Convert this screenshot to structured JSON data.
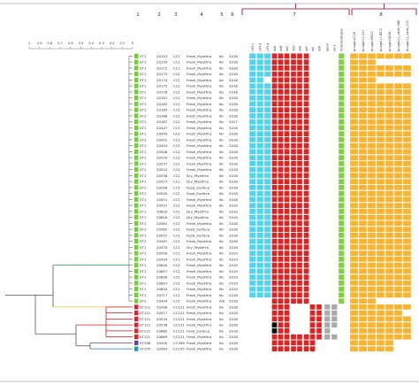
{
  "column_numbers": [
    "1",
    "2",
    "3",
    "4",
    "5",
    "6",
    "7",
    "8"
  ],
  "scale_ticks": [
    "1",
    "0.9",
    "0.8",
    "0.7",
    "0.6",
    "0.5",
    "0.4",
    "0.3",
    "0.2",
    "0.1",
    "0"
  ],
  "gene_headers": {
    "blue": [
      "LIPI-1",
      "LIPI-3",
      "LIPI-4"
    ],
    "red": [
      "inlA",
      "inlB",
      "inlC",
      "inlD",
      "inlE",
      "inlF",
      "inlJ",
      "inlK"
    ],
    "gray": [
      "qacH",
      "ssi-1"
    ],
    "green": [
      "fosX/resistance"
    ],
    "orange": [
      "pLisgel-A118",
      "pLisgel-J1-121",
      "pLisgel-M520",
      "pLisgel-J1-BD-2",
      "pLisgel-N236",
      "pLisgel-J1_Lmat_SB8",
      "pLisgel-J1_Lmat_200"
    ]
  },
  "colors": {
    "bracket": "#c0305a",
    "st_green": "#6fd02f",
    "st_red": "#e0202a",
    "st_purple": "#6a3fa0",
    "st_teal": "#18a0b0",
    "blue": "#50d4f0",
    "red": "#e61f1f",
    "orange": "#f7b42c",
    "gray": "#aaaaaa",
    "black": "#111111",
    "green_col": "#7ed23a",
    "tree_red": "#d8141c",
    "tree_blue": "#2080c8",
    "tree_purple": "#7040a8",
    "tree_yellow": "#e8c030",
    "tree_green": "#2aa040"
  },
  "isolates": [
    {
      "st": "ST1",
      "id": "20153",
      "cc": "CC1",
      "source": "Fresh_Mystfrra",
      "lab": "IIb",
      "year": "2016",
      "group": "green"
    },
    {
      "st": "ST1",
      "id": "20159",
      "cc": "CC1",
      "source": "Fresh_Mystfrra",
      "lab": "IIb",
      "year": "2016",
      "group": "green"
    },
    {
      "st": "ST1",
      "id": "20172",
      "cc": "CC1",
      "source": "Fresh_Mystfrra",
      "lab": "IIb",
      "year": "2016",
      "group": "green"
    },
    {
      "st": "ST1",
      "id": "20173",
      "cc": "CC1",
      "source": "Fresh_Mystfrra",
      "lab": "IIb",
      "year": "2016",
      "group": "green"
    },
    {
      "st": "ST1",
      "id": "20174",
      "cc": "CC1",
      "source": "Fresh_Mystfrra",
      "lab": "IIa",
      "year": "2016",
      "group": "green"
    },
    {
      "st": "ST1",
      "id": "20175",
      "cc": "CC1",
      "source": "Fresh_Mystfrra",
      "lab": "IIb",
      "year": "2016",
      "group": "green"
    },
    {
      "st": "ST1",
      "id": "20178",
      "cc": "CC1",
      "source": "Fresh_Mystfrra",
      "lab": "IIb",
      "year": "2016",
      "group": "green"
    },
    {
      "st": "ST1",
      "id": "20181",
      "cc": "CC1",
      "source": "Fresh_Mystfrra",
      "lab": "IIb",
      "year": "2018",
      "group": "green"
    },
    {
      "st": "ST1",
      "id": "20182",
      "cc": "CC1",
      "source": "Fresh_Mystfrra",
      "lab": "IIb",
      "year": "2018",
      "group": "green"
    },
    {
      "st": "ST1",
      "id": "20183",
      "cc": "CC1",
      "source": "Fresh_Mystfrra",
      "lab": "IIb",
      "year": "2016",
      "group": "green"
    },
    {
      "st": "ST1",
      "id": "20186",
      "cc": "CC1",
      "source": "Fresh_Mystfrra",
      "lab": "IIb",
      "year": "2018",
      "group": "green"
    },
    {
      "st": "ST1",
      "id": "20187",
      "cc": "CC1",
      "source": "Fresh_Mystfrra",
      "lab": "IIb",
      "year": "2017",
      "group": "green"
    },
    {
      "st": "ST1",
      "id": "20447",
      "cc": "CC1",
      "source": "Fresh_Mystfrra",
      "lab": "IIb",
      "year": "2018",
      "group": "green"
    },
    {
      "st": "ST1",
      "id": "20450",
      "cc": "CC1",
      "source": "Fresh_Mystfrra",
      "lab": "IIb",
      "year": "2018",
      "group": "green"
    },
    {
      "st": "ST1",
      "id": "20452",
      "cc": "CC1",
      "source": "Fresh_Mystfrra",
      "lab": "IIb",
      "year": "2018",
      "group": "green"
    },
    {
      "st": "ST1",
      "id": "20454",
      "cc": "CC1",
      "source": "Fresh_Mystfrra",
      "lab": "IIb",
      "year": "2018",
      "group": "green"
    },
    {
      "st": "ST1",
      "id": "20506",
      "cc": "CC1",
      "source": "Fresh_Mystfrra",
      "lab": "IIb",
      "year": "2018",
      "group": "green"
    },
    {
      "st": "ST1",
      "id": "20525",
      "cc": "CC1",
      "source": "Fresh_Mystfrra",
      "lab": "IIb",
      "year": "2018",
      "group": "green"
    },
    {
      "st": "ST1",
      "id": "20537",
      "cc": "CC1",
      "source": "Fresh_Mystfrra",
      "lab": "IIb",
      "year": "2018",
      "group": "green"
    },
    {
      "st": "ST1",
      "id": "20522",
      "cc": "CC1",
      "source": "Fresh_Mystfrra",
      "lab": "IIb",
      "year": "2018",
      "group": "green"
    },
    {
      "st": "ST1",
      "id": "20536",
      "cc": "CC1",
      "source": "Dry_Mystfrra",
      "lab": "IIb",
      "year": "2018",
      "group": "green"
    },
    {
      "st": "ST1",
      "id": "20527",
      "cc": "CC1",
      "source": "Dry_Mystfrra",
      "lab": "IIb",
      "year": "2018",
      "group": "green"
    },
    {
      "st": "ST1",
      "id": "20548",
      "cc": "CC1",
      "source": "Food_Surface",
      "lab": "IIb",
      "year": "2018",
      "group": "green"
    },
    {
      "st": "ST1",
      "id": "20550",
      "cc": "CC1",
      "source": "Food_Surface",
      "lab": "IIb",
      "year": "2018",
      "group": "green"
    },
    {
      "st": "ST1",
      "id": "20551",
      "cc": "CC1",
      "source": "Fresh_Mystfrra",
      "lab": "IIb",
      "year": "2018",
      "group": "green"
    },
    {
      "st": "ST1",
      "id": "20591",
      "cc": "CC1",
      "source": "Fresh_Mystfrra",
      "lab": "IIb",
      "year": "2019",
      "group": "green"
    },
    {
      "st": "ST1",
      "id": "20620",
      "cc": "CC1",
      "source": "Dry_Mystfrra",
      "lab": "IIb",
      "year": "2019",
      "group": "green"
    },
    {
      "st": "ST1",
      "id": "20650",
      "cc": "CC1",
      "source": "Dry_Mystfrra",
      "lab": "IIb",
      "year": "2019",
      "group": "green"
    },
    {
      "st": "ST1",
      "id": "20561",
      "cc": "CC1",
      "source": "Fresh_Mystfrra",
      "lab": "IIb",
      "year": "2018",
      "group": "green"
    },
    {
      "st": "ST1",
      "id": "20562",
      "cc": "CC1",
      "source": "Food_Surface",
      "lab": "IIb",
      "year": "2018",
      "group": "green"
    },
    {
      "st": "ST1",
      "id": "20557",
      "cc": "CC1",
      "source": "Food_Surface",
      "lab": "IIb",
      "year": "2018",
      "group": "green"
    },
    {
      "st": "ST1",
      "id": "20567",
      "cc": "CC1",
      "source": "Fresh_Mystfrra",
      "lab": "IIb",
      "year": "2018",
      "group": "green"
    },
    {
      "st": "ST1",
      "id": "20570",
      "cc": "CC1",
      "source": "Dry_Mystfrra",
      "lab": "IIb",
      "year": "2018",
      "group": "green"
    },
    {
      "st": "ST1",
      "id": "20590",
      "cc": "CC1",
      "source": "Fresh_Mystfrra",
      "lab": "IIb",
      "year": "2019",
      "group": "green"
    },
    {
      "st": "ST1",
      "id": "20593",
      "cc": "CC1",
      "source": "Fresh_Mystfrra",
      "lab": "IIb",
      "year": "2019",
      "group": "green"
    },
    {
      "st": "ST1",
      "id": "20640",
      "cc": "CC1",
      "source": "Fresh_Mystfrra",
      "lab": "IIb",
      "year": "2019",
      "group": "green"
    },
    {
      "st": "ST1",
      "id": "20657",
      "cc": "CC1",
      "source": "Fresh_Mystfrra",
      "lab": "IIb",
      "year": "2019",
      "group": "green"
    },
    {
      "st": "ST1",
      "id": "20656",
      "cc": "CC1",
      "source": "Fresh_Mystfrra",
      "lab": "IIb",
      "year": "2019",
      "group": "green"
    },
    {
      "st": "ST1",
      "id": "20691",
      "cc": "CC1",
      "source": "Fresh_Mystfrra",
      "lab": "IIb",
      "year": "2019",
      "group": "green"
    },
    {
      "st": "ST1",
      "id": "20654",
      "cc": "CC1",
      "source": "Fresh_Mystfrra",
      "lab": "IIb",
      "year": "2019",
      "group": "green"
    },
    {
      "st": "ST1",
      "id": "20717",
      "cc": "CC1",
      "source": "Fresh_Mystfrra",
      "lab": "IIb",
      "year": "2018",
      "group": "green"
    },
    {
      "st": "ST1",
      "id": "20494",
      "cc": "CC1",
      "source": "Fresh_Mystfrra",
      "lab": "IVb",
      "year": "2018",
      "group": "green"
    },
    {
      "st": "ST121",
      "id": "20396",
      "cc": "CC121",
      "source": "Fresh_Mystfrra",
      "lab": "IIa",
      "year": "2018",
      "group": "red"
    },
    {
      "st": "ST121",
      "id": "20517",
      "cc": "CC121",
      "source": "Fresh_Mystfrra",
      "lab": "IIa",
      "year": "2018",
      "group": "red"
    },
    {
      "st": "ST121",
      "id": "20534",
      "cc": "CC121",
      "source": "Fresh_Mystfrra",
      "lab": "IIa",
      "year": "2018",
      "group": "red"
    },
    {
      "st": "ST121",
      "id": "20538",
      "cc": "CC121",
      "source": "Fresh_Mystfrra",
      "lab": "IIa",
      "year": "2018",
      "group": "red"
    },
    {
      "st": "ST121",
      "id": "20680",
      "cc": "CC121",
      "source": "Food_Surface",
      "lab": "IIa",
      "year": "2018",
      "group": "red"
    },
    {
      "st": "ST121",
      "id": "20689",
      "cc": "CC121",
      "source": "Fresh_Mystfrra",
      "lab": "IIa",
      "year": "2018",
      "group": "red"
    },
    {
      "st": "ST398",
      "id": "20450",
      "cc": "CC398",
      "source": "Fresh_Mystfrra",
      "lab": "IIa",
      "year": "2018",
      "group": "purple"
    },
    {
      "st": "ST155",
      "id": "20563",
      "cc": "CC155",
      "source": "Fresh_Mystfrra",
      "lab": "IIa",
      "year": "2018",
      "group": "teal"
    }
  ]
}
